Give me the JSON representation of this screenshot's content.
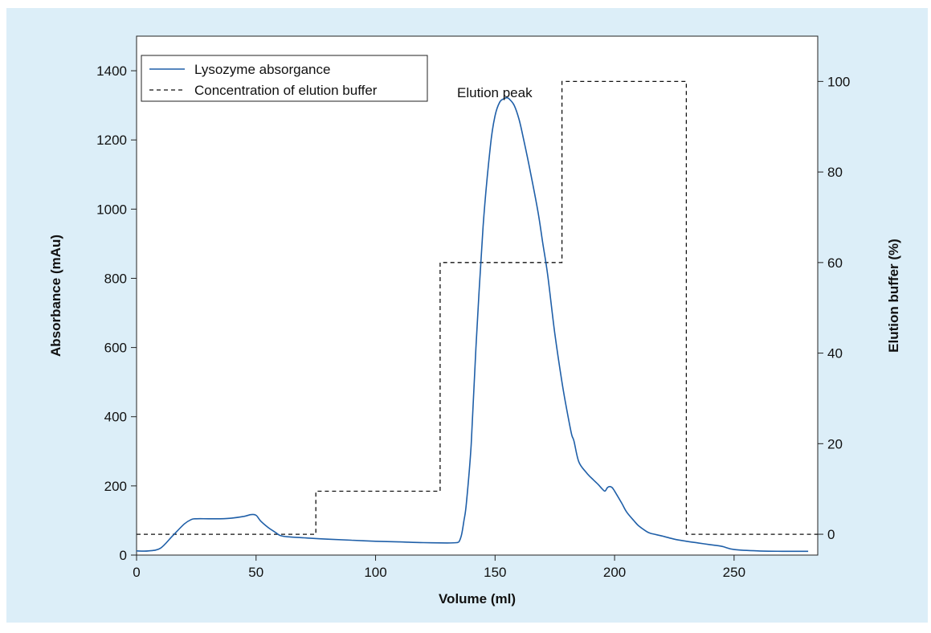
{
  "chart_data": {
    "type": "line",
    "xlabel": "Volume (ml)",
    "ylabel": "Absorbance (mAu)",
    "y2label": "Elution buffer (%)",
    "xlim": [
      0,
      285
    ],
    "ylim": [
      0,
      1500
    ],
    "y2lim": [
      -4.6,
      110
    ],
    "x_ticks": [
      0,
      50,
      100,
      150,
      200,
      250
    ],
    "y_ticks": [
      0,
      200,
      400,
      600,
      800,
      1000,
      1200,
      1400
    ],
    "y2_ticks": [
      0,
      20,
      40,
      60,
      80,
      100
    ],
    "grid": false,
    "legend_position": "top-left",
    "colors": {
      "absorbance": "#1f5fa8",
      "buffer": "#111111"
    },
    "series": [
      {
        "name": "Lysozyme absorgance",
        "axis": "left",
        "style": "solid",
        "x": [
          0,
          5,
          10,
          15,
          20,
          23,
          25,
          30,
          35,
          40,
          45,
          48,
          50,
          52,
          55,
          58,
          60,
          63,
          70,
          80,
          90,
          100,
          110,
          120,
          130,
          134,
          135,
          136,
          137,
          138,
          140,
          142,
          145,
          148,
          150,
          152,
          154,
          155,
          156,
          158,
          160,
          162,
          165,
          168,
          170,
          172,
          175,
          178,
          180,
          182,
          183,
          185,
          188,
          190,
          193,
          195,
          196,
          197,
          198,
          199,
          200,
          203,
          205,
          208,
          210,
          213,
          215,
          220,
          225,
          230,
          235,
          240,
          245,
          250,
          260,
          270,
          281
        ],
        "y": [
          12,
          12,
          20,
          55,
          90,
          103,
          105,
          105,
          105,
          107,
          112,
          117,
          115,
          98,
          80,
          66,
          57,
          53,
          50,
          46,
          43,
          40,
          38,
          36,
          35,
          36,
          40,
          60,
          100,
          150,
          320,
          600,
          950,
          1180,
          1270,
          1310,
          1320,
          1322,
          1318,
          1300,
          1260,
          1200,
          1100,
          990,
          900,
          810,
          640,
          500,
          420,
          350,
          330,
          270,
          240,
          225,
          205,
          190,
          185,
          195,
          198,
          195,
          185,
          150,
          125,
          100,
          85,
          70,
          63,
          55,
          46,
          40,
          35,
          30,
          25,
          16,
          12,
          11,
          11
        ]
      },
      {
        "name": "Concentration of elution buffer",
        "axis": "right",
        "style": "dashed",
        "x": [
          0,
          75,
          75,
          127,
          127,
          178,
          178,
          230,
          230,
          288
        ],
        "y": [
          0,
          0,
          9.5,
          9.5,
          60,
          60,
          100,
          100,
          0,
          0
        ]
      }
    ],
    "annotations": [
      {
        "text": "Elution peak"
      }
    ]
  }
}
